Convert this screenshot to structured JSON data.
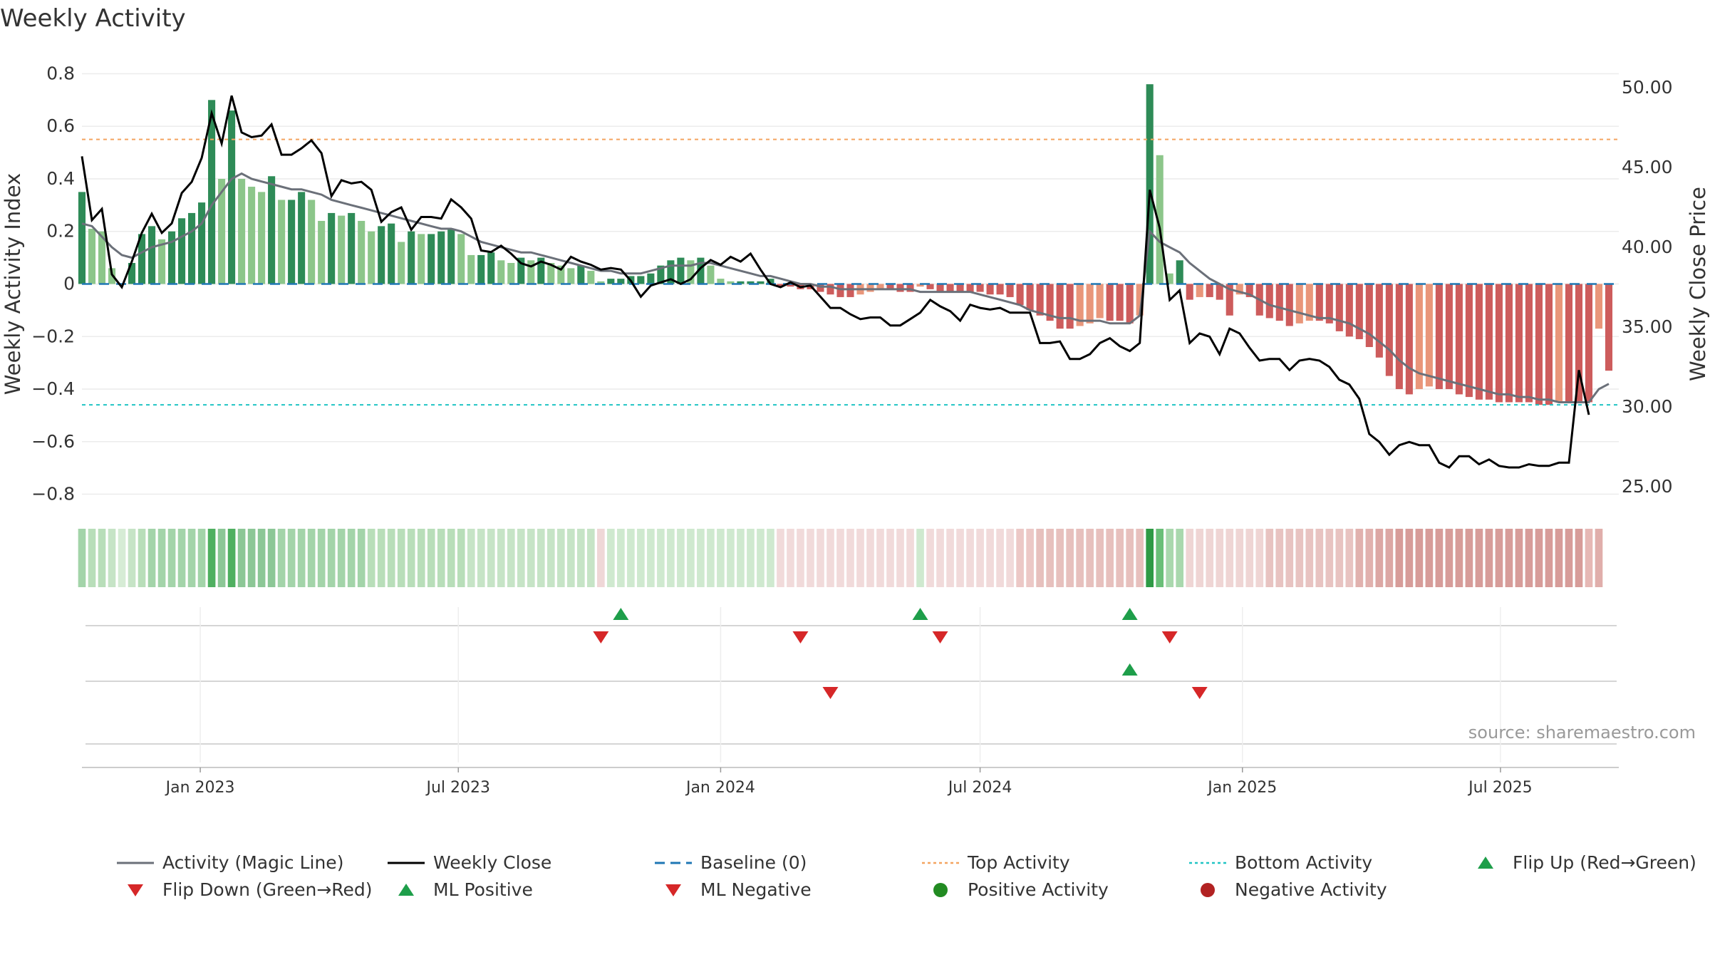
{
  "title": "Weekly Activity",
  "source": "source: sharemaestro.com",
  "chart_data": {
    "type": "bar",
    "left_axis": {
      "label": "Weekly Activity Index",
      "ylim": [
        -0.85,
        0.85
      ],
      "ticks": [
        -0.8,
        -0.6,
        -0.4,
        -0.2,
        0,
        0.2,
        0.4,
        0.6,
        0.8
      ],
      "tick_labels": [
        "−0.8",
        "−0.6",
        "−0.4",
        "−0.2",
        "0",
        "0.2",
        "0.4",
        "0.6",
        "0.8"
      ]
    },
    "right_axis": {
      "label": "Weekly Close Price",
      "ylim": [
        23.7,
        51.7
      ],
      "ticks": [
        25,
        30,
        35,
        40,
        45,
        50
      ],
      "tick_labels": [
        "25.00",
        "30.00",
        "35.00",
        "40.00",
        "45.00",
        "50.00"
      ]
    },
    "x_axis": {
      "start": "2022-10-10",
      "end": "2025-09-22",
      "ticks": [
        "2023-01-01",
        "2023-07-01",
        "2024-01-01",
        "2024-07-01",
        "2025-01-01",
        "2025-07-01"
      ],
      "tick_labels": [
        "Jan 2023",
        "Jul 2023",
        "Jan 2024",
        "Jul 2024",
        "Jan 2025",
        "Jul 2025"
      ]
    },
    "reference_lines": {
      "top_activity": 0.55,
      "bottom_activity": -0.46,
      "baseline": 0
    },
    "activity_values": [
      0.35,
      0.21,
      0.2,
      0.06,
      0.0,
      0.08,
      0.19,
      0.22,
      0.17,
      0.2,
      0.25,
      0.27,
      0.31,
      0.7,
      0.4,
      0.66,
      0.4,
      0.37,
      0.35,
      0.41,
      0.32,
      0.32,
      0.35,
      0.32,
      0.24,
      0.27,
      0.26,
      0.27,
      0.24,
      0.2,
      0.22,
      0.23,
      0.16,
      0.2,
      0.19,
      0.19,
      0.2,
      0.21,
      0.19,
      0.11,
      0.11,
      0.12,
      0.09,
      0.08,
      0.1,
      0.09,
      0.1,
      0.08,
      0.07,
      0.06,
      0.07,
      0.05,
      0.01,
      0.02,
      0.02,
      0.03,
      0.03,
      0.04,
      0.07,
      0.09,
      0.1,
      0.09,
      0.1,
      0.07,
      0.02,
      0.01,
      0.01,
      0.01,
      0.01,
      0.02,
      -0.01,
      -0.01,
      -0.02,
      -0.02,
      -0.03,
      -0.04,
      -0.05,
      -0.05,
      -0.04,
      -0.03,
      -0.02,
      -0.02,
      -0.03,
      -0.03,
      -0.01,
      -0.02,
      -0.03,
      -0.03,
      -0.03,
      -0.03,
      -0.03,
      -0.04,
      -0.04,
      -0.05,
      -0.08,
      -0.1,
      -0.12,
      -0.14,
      -0.17,
      -0.17,
      -0.16,
      -0.15,
      -0.13,
      -0.14,
      -0.14,
      -0.15,
      -0.12,
      0.76,
      0.49,
      0.04,
      0.09,
      -0.06,
      -0.05,
      -0.05,
      -0.06,
      -0.12,
      -0.04,
      -0.05,
      -0.12,
      -0.13,
      -0.14,
      -0.16,
      -0.15,
      -0.14,
      -0.14,
      -0.15,
      -0.18,
      -0.2,
      -0.21,
      -0.24,
      -0.28,
      -0.35,
      -0.4,
      -0.42,
      -0.4,
      -0.39,
      -0.4,
      -0.4,
      -0.42,
      -0.43,
      -0.44,
      -0.44,
      -0.45,
      -0.45,
      -0.45,
      -0.45,
      -0.46,
      -0.46,
      -0.45,
      -0.45,
      -0.45,
      -0.45,
      -0.17,
      -0.33
    ],
    "magic_line_values": [
      0.23,
      0.22,
      0.18,
      0.14,
      0.11,
      0.1,
      0.12,
      0.14,
      0.15,
      0.16,
      0.18,
      0.2,
      0.23,
      0.3,
      0.35,
      0.4,
      0.42,
      0.4,
      0.39,
      0.38,
      0.37,
      0.36,
      0.36,
      0.35,
      0.34,
      0.32,
      0.31,
      0.3,
      0.29,
      0.28,
      0.27,
      0.26,
      0.25,
      0.24,
      0.23,
      0.22,
      0.21,
      0.21,
      0.2,
      0.18,
      0.16,
      0.15,
      0.14,
      0.13,
      0.12,
      0.12,
      0.11,
      0.1,
      0.09,
      0.08,
      0.07,
      0.06,
      0.05,
      0.05,
      0.04,
      0.04,
      0.04,
      0.05,
      0.06,
      0.07,
      0.07,
      0.07,
      0.08,
      0.08,
      0.07,
      0.06,
      0.05,
      0.04,
      0.03,
      0.03,
      0.02,
      0.01,
      0.0,
      0.0,
      -0.01,
      -0.01,
      -0.02,
      -0.02,
      -0.02,
      -0.02,
      -0.02,
      -0.02,
      -0.02,
      -0.02,
      -0.03,
      -0.03,
      -0.03,
      -0.03,
      -0.03,
      -0.03,
      -0.04,
      -0.05,
      -0.06,
      -0.07,
      -0.08,
      -0.1,
      -0.11,
      -0.12,
      -0.13,
      -0.13,
      -0.14,
      -0.14,
      -0.14,
      -0.15,
      -0.15,
      -0.15,
      -0.12,
      0.2,
      0.16,
      0.14,
      0.12,
      0.08,
      0.05,
      0.02,
      0.0,
      -0.02,
      -0.03,
      -0.04,
      -0.06,
      -0.08,
      -0.09,
      -0.1,
      -0.11,
      -0.12,
      -0.13,
      -0.13,
      -0.14,
      -0.15,
      -0.17,
      -0.19,
      -0.22,
      -0.25,
      -0.29,
      -0.32,
      -0.34,
      -0.35,
      -0.36,
      -0.37,
      -0.38,
      -0.39,
      -0.4,
      -0.41,
      -0.42,
      -0.42,
      -0.43,
      -0.43,
      -0.44,
      -0.44,
      -0.45,
      -0.45,
      -0.45,
      -0.45,
      -0.4,
      -0.38
    ],
    "close_values": [
      45.7,
      41.7,
      42.4,
      38.3,
      37.5,
      39.1,
      40.9,
      42.1,
      40.9,
      41.5,
      43.4,
      44.1,
      45.6,
      48.4,
      46.5,
      49.5,
      47.2,
      46.9,
      47.0,
      47.7,
      45.8,
      45.8,
      46.2,
      46.7,
      45.9,
      43.2,
      44.2,
      44.0,
      44.1,
      43.6,
      41.6,
      42.2,
      42.5,
      41.1,
      41.9,
      41.9,
      41.8,
      43.0,
      42.5,
      41.8,
      39.8,
      39.7,
      40.1,
      39.6,
      39.0,
      38.8,
      39.1,
      38.9,
      38.6,
      39.4,
      39.1,
      38.9,
      38.6,
      38.7,
      38.6,
      37.9,
      36.9,
      37.6,
      37.8,
      38.0,
      37.7,
      38.0,
      38.7,
      39.2,
      38.9,
      39.4,
      39.1,
      39.6,
      38.6,
      37.7,
      37.5,
      37.8,
      37.5,
      37.6,
      36.9,
      36.2,
      36.2,
      35.8,
      35.5,
      35.6,
      35.6,
      35.1,
      35.1,
      35.5,
      35.9,
      36.7,
      36.3,
      36.0,
      35.4,
      36.4,
      36.2,
      36.1,
      36.2,
      35.9,
      35.9,
      35.9,
      34.0,
      34.0,
      34.1,
      33.0,
      33.0,
      33.3,
      34.0,
      34.3,
      33.8,
      33.5,
      34.0,
      43.6,
      41.2,
      36.7,
      37.3,
      34.0,
      34.6,
      34.4,
      33.3,
      34.9,
      34.6,
      33.7,
      32.9,
      33.0,
      33.0,
      32.3,
      32.9,
      33.0,
      32.9,
      32.5,
      31.7,
      31.4,
      30.5,
      28.3,
      27.8,
      27.0,
      27.6,
      27.8,
      27.6,
      27.6,
      26.5,
      26.2,
      26.9,
      26.9,
      26.4,
      26.7,
      26.3,
      26.2,
      26.2,
      26.4,
      26.3,
      26.3,
      26.5,
      26.5,
      32.3,
      29.5
    ],
    "strip_colors": [
      "#a3d4a9",
      "#b8deb9",
      "#b8deb9",
      "#c6e4c6",
      "#d6ecd5",
      "#c6e4c6",
      "#b8deb9",
      "#a3d4a9",
      "#a3d4a9",
      "#a3d4a9",
      "#a3d4a9",
      "#a3d4a9",
      "#a3d4a9",
      "#4fb060",
      "#8cc796",
      "#4fb060",
      "#8cc796",
      "#8cc796",
      "#8cc796",
      "#8cc796",
      "#a3d4a9",
      "#a3d4a9",
      "#a3d4a9",
      "#a3d4a9",
      "#a3d4a9",
      "#a3d4a9",
      "#a3d4a9",
      "#a3d4a9",
      "#a3d4a9",
      "#b8deb9",
      "#b8deb9",
      "#b8deb9",
      "#b8deb9",
      "#b8deb9",
      "#b8deb9",
      "#b8deb9",
      "#b8deb9",
      "#b8deb9",
      "#b8deb9",
      "#c6e4c6",
      "#c6e4c6",
      "#c6e4c6",
      "#c6e4c6",
      "#c6e4c6",
      "#c6e4c6",
      "#c6e4c6",
      "#c6e4c6",
      "#c6e4c6",
      "#c6e4c6",
      "#c6e4c6",
      "#c6e4c6",
      "#c6e4c6",
      "#efd7d7",
      "#cfe9cf",
      "#cfe9cf",
      "#cfe9cf",
      "#cfe9cf",
      "#cfe9cf",
      "#cfe9cf",
      "#cfe9cf",
      "#cfe9cf",
      "#cfe9cf",
      "#cfe9cf",
      "#cfe9cf",
      "#cfe9cf",
      "#cfe9cf",
      "#cfe9cf",
      "#cfe9cf",
      "#cfe9cf",
      "#cfe9cf",
      "#f1dada",
      "#f1dada",
      "#f1dada",
      "#f1dada",
      "#f1dada",
      "#f1dada",
      "#f1dada",
      "#f1dada",
      "#f1dada",
      "#f1dada",
      "#f1dada",
      "#f1dada",
      "#f1dada",
      "#f1dada",
      "#cfe9cf",
      "#f1dada",
      "#f1dada",
      "#f1dada",
      "#f1dada",
      "#f1dada",
      "#f1dada",
      "#f1dada",
      "#f1dada",
      "#f1dada",
      "#ecc8c6",
      "#ecc8c6",
      "#e7c0bd",
      "#e7c0bd",
      "#e7c0bd",
      "#e7c0bd",
      "#e7c0bd",
      "#e7c0bd",
      "#e7c0bd",
      "#e7c0bd",
      "#e7c0bd",
      "#e7c0bd",
      "#e7c0bd",
      "#2e9a45",
      "#6abf78",
      "#a9d8ad",
      "#a9d8ad",
      "#efd5d4",
      "#efd5d4",
      "#efd5d4",
      "#efd5d4",
      "#efd5d4",
      "#efd5d4",
      "#efd5d4",
      "#efd5d4",
      "#e8c3c1",
      "#e8c3c1",
      "#e8c3c1",
      "#e8c3c1",
      "#e8c3c1",
      "#e8c3c1",
      "#e8c3c1",
      "#e8c3c1",
      "#e8c3c1",
      "#e1b1ae",
      "#e1b1ae",
      "#dca7a4",
      "#dca7a4",
      "#d79c99",
      "#d79c99",
      "#d79c99",
      "#d79c99",
      "#d79c99",
      "#d79c99",
      "#d79c99",
      "#d79c99",
      "#d79c99",
      "#d79c99",
      "#d79c99",
      "#d79c99",
      "#d79c99",
      "#d79c99",
      "#d79c99",
      "#d79c99",
      "#d79c99",
      "#d79c99",
      "#d79c99",
      "#e6b8b5",
      "#e0aeab"
    ],
    "ml_flip_up_dates": [
      "2023-10-23",
      "2024-05-20",
      "2024-10-14"
    ],
    "ml_flip_down_dates": [
      "2023-10-09",
      "2024-02-26",
      "2024-06-03",
      "2024-11-11"
    ],
    "activity_flip_up_dates": [
      "2024-10-14"
    ],
    "activity_flip_down_dates": [
      "2024-03-18",
      "2024-12-02"
    ],
    "colors": {
      "strong_green": "#2e8b57",
      "light_green": "#8cc68a",
      "strong_red": "#cd5c5c",
      "light_red": "#e9967a",
      "magic_line": "#6b7079",
      "close_line": "#000000",
      "baseline": "#1f77b4",
      "top_activity": "#f4a460",
      "bottom_activity": "#20c4c4",
      "marker_green": "#1e9e4a",
      "marker_red": "#d62728",
      "positive_dot": "#228b22",
      "negative_dot": "#b22222"
    }
  },
  "legend": [
    {
      "label": "Activity (Magic Line)",
      "symbol": "line",
      "color": "#6b7079"
    },
    {
      "label": "Weekly Close",
      "symbol": "line",
      "color": "#000000"
    },
    {
      "label": "Baseline (0)",
      "symbol": "dash",
      "color": "#1f77b4"
    },
    {
      "label": "Top Activity",
      "symbol": "dot",
      "color": "#f4a460"
    },
    {
      "label": "Bottom Activity",
      "symbol": "dot",
      "color": "#20c4c4"
    },
    {
      "label": "Flip Up (Red→Green)",
      "symbol": "tri-up",
      "color": "#1e9e4a"
    },
    {
      "label": "Flip Down (Green→Red)",
      "symbol": "tri-down",
      "color": "#d62728"
    },
    {
      "label": "ML Positive",
      "symbol": "tri-up",
      "color": "#1e9e4a"
    },
    {
      "label": "ML Negative",
      "symbol": "tri-down",
      "color": "#d62728"
    },
    {
      "label": "Positive Activity",
      "symbol": "circle",
      "color": "#228b22"
    },
    {
      "label": "Negative Activity",
      "symbol": "circle",
      "color": "#b22222"
    }
  ]
}
